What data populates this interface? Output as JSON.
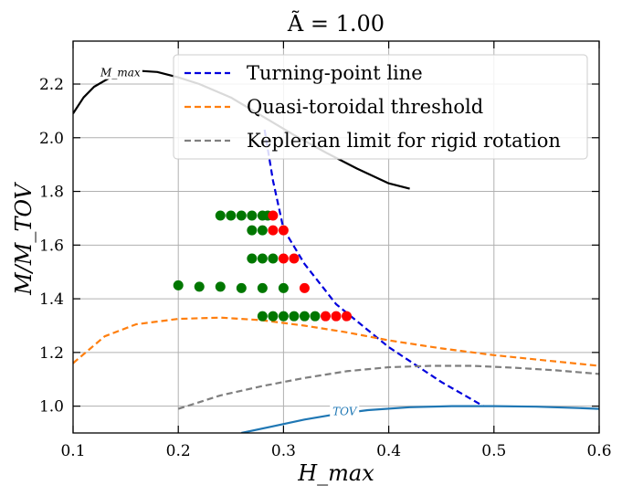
{
  "chart_data": {
    "type": "line",
    "title": "Ã = 1.00",
    "xlabel": "H_max",
    "ylabel": "M/M_TOV",
    "xlim": [
      0.1,
      0.6
    ],
    "ylim": [
      0.9,
      2.36
    ],
    "xticks": [
      0.1,
      0.2,
      0.3,
      0.4,
      0.5,
      0.6
    ],
    "xtick_labels": [
      "0.1",
      "0.2",
      "0.3",
      "0.4",
      "0.5",
      "0.6"
    ],
    "yticks": [
      1.0,
      1.2,
      1.4,
      1.6,
      1.8,
      2.0,
      2.2
    ],
    "ytick_labels": [
      "1.0",
      "1.2",
      "1.4",
      "1.6",
      "1.8",
      "2.0",
      "2.2"
    ],
    "grid": true,
    "legend_position": "top-right",
    "colors": {
      "turning": "#0000dd",
      "quasi": "#ff7f0e",
      "kepler": "#7f7f7f",
      "mmax": "#000000",
      "tov": "#1f77b4",
      "stable_point": "#007700",
      "unstable_point": "#ff0000"
    },
    "legend": [
      {
        "label": "Turning-point line",
        "color": "#0000dd"
      },
      {
        "label": "Quasi-toroidal threshold",
        "color": "#ff7f0e"
      },
      {
        "label": "Keplerian limit for rigid rotation",
        "color": "#7f7f7f"
      }
    ],
    "series": [
      {
        "name": "Turning-point line",
        "style": "dashed",
        "color": "#0000dd",
        "x": [
          0.282,
          0.29,
          0.3,
          0.32,
          0.35,
          0.4,
          0.45,
          0.49
        ],
        "y": [
          2.03,
          1.84,
          1.66,
          1.53,
          1.38,
          1.22,
          1.09,
          1.0
        ]
      },
      {
        "name": "Quasi-toroidal threshold",
        "style": "dashed",
        "color": "#ff7f0e",
        "x": [
          0.1,
          0.13,
          0.16,
          0.2,
          0.24,
          0.28,
          0.32,
          0.36,
          0.4,
          0.45,
          0.5,
          0.55,
          0.6
        ],
        "y": [
          1.16,
          1.26,
          1.305,
          1.325,
          1.33,
          1.32,
          1.3,
          1.275,
          1.245,
          1.215,
          1.19,
          1.17,
          1.15
        ]
      },
      {
        "name": "Keplerian limit for rigid rotation",
        "style": "dashed",
        "color": "#7f7f7f",
        "x": [
          0.2,
          0.24,
          0.28,
          0.32,
          0.36,
          0.4,
          0.44,
          0.48,
          0.52,
          0.56,
          0.6
        ],
        "y": [
          0.99,
          1.04,
          1.075,
          1.105,
          1.13,
          1.145,
          1.15,
          1.15,
          1.143,
          1.133,
          1.12
        ]
      },
      {
        "name": "M_max",
        "style": "solid",
        "color": "#000000",
        "x": [
          0.1,
          0.11,
          0.12,
          0.14,
          0.16,
          0.18,
          0.2,
          0.22,
          0.25,
          0.28,
          0.31,
          0.34,
          0.37,
          0.4,
          0.42
        ],
        "y": [
          2.09,
          2.15,
          2.19,
          2.235,
          2.25,
          2.245,
          2.225,
          2.2,
          2.15,
          2.08,
          2.01,
          1.945,
          1.885,
          1.83,
          1.81
        ]
      },
      {
        "name": "TOV",
        "style": "solid",
        "color": "#1f77b4",
        "x": [
          0.26,
          0.29,
          0.32,
          0.35,
          0.38,
          0.42,
          0.46,
          0.5,
          0.54,
          0.58,
          0.6
        ],
        "y": [
          0.9,
          0.925,
          0.95,
          0.97,
          0.985,
          0.996,
          1.0,
          1.0,
          0.998,
          0.993,
          0.99
        ]
      }
    ],
    "annotations": [
      {
        "text": "M_max",
        "x": 0.145,
        "y": 2.242,
        "color": "#000000"
      },
      {
        "text": "TOV",
        "x": 0.358,
        "y": 0.98,
        "color": "#1f77b4"
      }
    ],
    "scatter": [
      {
        "x": 0.24,
        "y": 1.71,
        "status": "stable"
      },
      {
        "x": 0.25,
        "y": 1.71,
        "status": "stable"
      },
      {
        "x": 0.26,
        "y": 1.71,
        "status": "stable"
      },
      {
        "x": 0.27,
        "y": 1.71,
        "status": "stable"
      },
      {
        "x": 0.28,
        "y": 1.71,
        "status": "stable"
      },
      {
        "x": 0.285,
        "y": 1.71,
        "status": "stable"
      },
      {
        "x": 0.29,
        "y": 1.71,
        "status": "unstable"
      },
      {
        "x": 0.27,
        "y": 1.655,
        "status": "stable"
      },
      {
        "x": 0.28,
        "y": 1.655,
        "status": "stable"
      },
      {
        "x": 0.29,
        "y": 1.655,
        "status": "unstable"
      },
      {
        "x": 0.3,
        "y": 1.655,
        "status": "unstable"
      },
      {
        "x": 0.27,
        "y": 1.55,
        "status": "stable"
      },
      {
        "x": 0.28,
        "y": 1.55,
        "status": "stable"
      },
      {
        "x": 0.29,
        "y": 1.55,
        "status": "stable"
      },
      {
        "x": 0.3,
        "y": 1.55,
        "status": "unstable"
      },
      {
        "x": 0.31,
        "y": 1.55,
        "status": "unstable"
      },
      {
        "x": 0.2,
        "y": 1.45,
        "status": "stable"
      },
      {
        "x": 0.22,
        "y": 1.445,
        "status": "stable"
      },
      {
        "x": 0.24,
        "y": 1.445,
        "status": "stable"
      },
      {
        "x": 0.26,
        "y": 1.44,
        "status": "stable"
      },
      {
        "x": 0.28,
        "y": 1.44,
        "status": "stable"
      },
      {
        "x": 0.3,
        "y": 1.44,
        "status": "stable"
      },
      {
        "x": 0.32,
        "y": 1.44,
        "status": "unstable"
      },
      {
        "x": 0.28,
        "y": 1.335,
        "status": "stable"
      },
      {
        "x": 0.29,
        "y": 1.335,
        "status": "stable"
      },
      {
        "x": 0.3,
        "y": 1.335,
        "status": "stable"
      },
      {
        "x": 0.31,
        "y": 1.335,
        "status": "stable"
      },
      {
        "x": 0.32,
        "y": 1.335,
        "status": "stable"
      },
      {
        "x": 0.33,
        "y": 1.335,
        "status": "stable"
      },
      {
        "x": 0.34,
        "y": 1.335,
        "status": "unstable"
      },
      {
        "x": 0.35,
        "y": 1.335,
        "status": "unstable"
      },
      {
        "x": 0.36,
        "y": 1.335,
        "status": "unstable"
      }
    ]
  }
}
